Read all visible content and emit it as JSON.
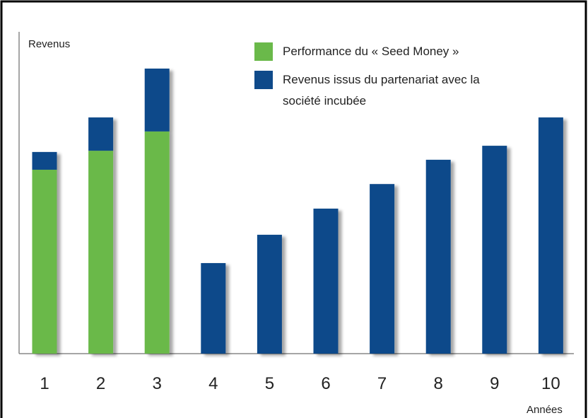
{
  "chart_data": {
    "type": "stacked-bar",
    "y_label": "Revenus",
    "x_label": "Années",
    "categories": [
      "1",
      "2",
      "3",
      "4",
      "5",
      "6",
      "7",
      "8",
      "9",
      "10"
    ],
    "series": [
      {
        "name": "Performance du « Seed Money »",
        "color": "#6ab94a",
        "values": [
          59.1,
          65.2,
          71.4,
          null,
          null,
          null,
          null,
          null,
          null,
          null
        ]
      },
      {
        "name": "Revenus issus du partenariat avec la société incubée",
        "color": "#0f4a8a",
        "values": [
          5.7,
          10.7,
          20.2,
          29.1,
          38.2,
          46.6,
          54.5,
          62.3,
          66.8,
          75.9
        ]
      }
    ],
    "ylim": [
      0,
      100
    ]
  }
}
